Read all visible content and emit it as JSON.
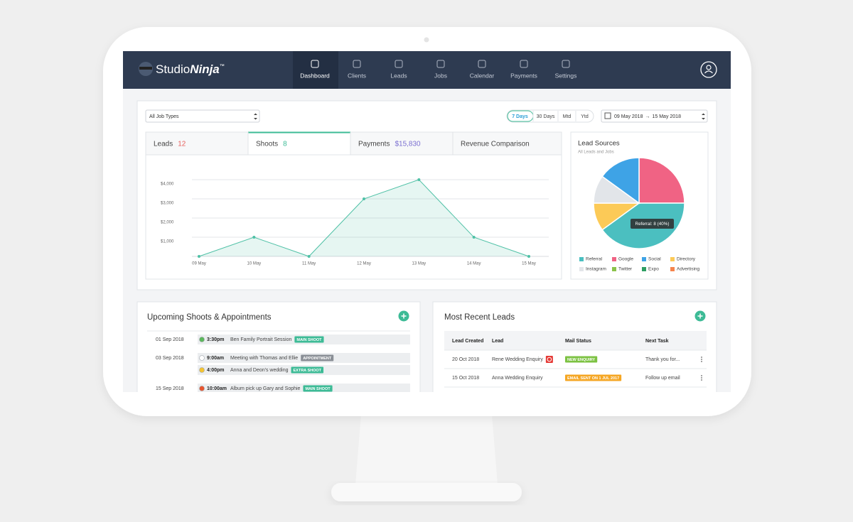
{
  "nav": {
    "brand": "Studio",
    "brand_em": "Ninja",
    "trademark": "™",
    "items": [
      "Dashboard",
      "Clients",
      "Leads",
      "Jobs",
      "Calendar",
      "Payments",
      "Settings"
    ]
  },
  "filters": {
    "job_type": "All Job Types",
    "ranges": [
      "7 Days",
      "30 Days",
      "Mtd",
      "Ytd"
    ],
    "date_from": "09 May 2018",
    "arrow": "→",
    "date_to": "15 May 2018"
  },
  "tabs": [
    {
      "label": "Leads",
      "count": 12,
      "color": "#e8625f"
    },
    {
      "label": "Shoots",
      "count": 8,
      "color": "#3dbb96"
    },
    {
      "label": "Payments",
      "count": "$15,830",
      "color": "#7b6fd1"
    },
    {
      "label": "Revenue Comparison"
    }
  ],
  "chart_data": [
    {
      "type": "line",
      "categories": [
        "09 May",
        "10 May",
        "11 May",
        "12 May",
        "13 May",
        "14 May",
        "15 May"
      ],
      "values": [
        0,
        1000,
        0,
        3000,
        4000,
        1000,
        0
      ],
      "color": "#4fc1a6",
      "ylim": [
        0,
        4000
      ],
      "yticks": [
        {
          "value": 1000,
          "label": "$1,000"
        },
        {
          "value": 2000,
          "label": "$2,000"
        },
        {
          "value": 3000,
          "label": "$3,000"
        },
        {
          "value": 4000,
          "label": "$4,000"
        }
      ],
      "grid": true
    },
    {
      "type": "pie",
      "title": "Lead Sources",
      "subtitle": "All Leads and Jobs",
      "categories": [
        "Referral",
        "Google",
        "Social",
        "Directory",
        "Instagram",
        "Twitter",
        "Expo",
        "Advertising"
      ],
      "values": [
        8,
        5,
        3,
        2,
        2,
        0,
        0,
        0
      ],
      "colors": [
        "#4bbfc0",
        "#f06384",
        "#3ea3e6",
        "#fcca57",
        "#e2e5e9",
        "#8bc34a",
        "#2e9e63",
        "#f5844c"
      ],
      "tooltip": "Referral: 8 (40%)"
    }
  ],
  "upcoming": {
    "title": "Upcoming Shoots & Appointments",
    "rows": [
      {
        "date": "01 Sep 2018",
        "time": "3:30pm",
        "title": "Ben Family Portrait Session",
        "tag": "MAIN SHOOT",
        "dot": "#5cb85c",
        "tag_color": "#3dbb96"
      },
      {
        "date": "03 Sep 2018",
        "time": "9:00am",
        "title": "Meeting with Thomas and Ellie",
        "tag": "APPOINTMENT",
        "dot": "#ffffff",
        "tag_color": "#8a8f96"
      },
      {
        "time": "4:00pm",
        "title": "Anna and Deon's wedding",
        "tag": "EXTRA SHOOT",
        "dot": "#f5c431",
        "tag_color": "#3dbb96"
      },
      {
        "date": "15 Sep 2018",
        "time": "10:00am",
        "title": "Album pick up Gary and Sophie",
        "tag": "MAIN SHOOT",
        "dot": "#e8552f",
        "tag_color": "#3dbb96"
      }
    ]
  },
  "leads": {
    "title": "Most Recent Leads",
    "columns": [
      "Lead Created",
      "Lead",
      "Mail Status",
      "Next Task"
    ],
    "rows": [
      {
        "created": "20 Oct 2018",
        "lead": "Rene Wedding Enquiry",
        "status": "NEW ENQUIRY",
        "status_color": "#7cc242",
        "task": "Thank you for..."
      },
      {
        "created": "15 Oct 2018",
        "lead": "Anna Wedding Enquiry",
        "status": "EMAIL SENT ON 1 JUL 2017",
        "status_color": "#f5a623",
        "task": "Follow up email"
      }
    ]
  }
}
